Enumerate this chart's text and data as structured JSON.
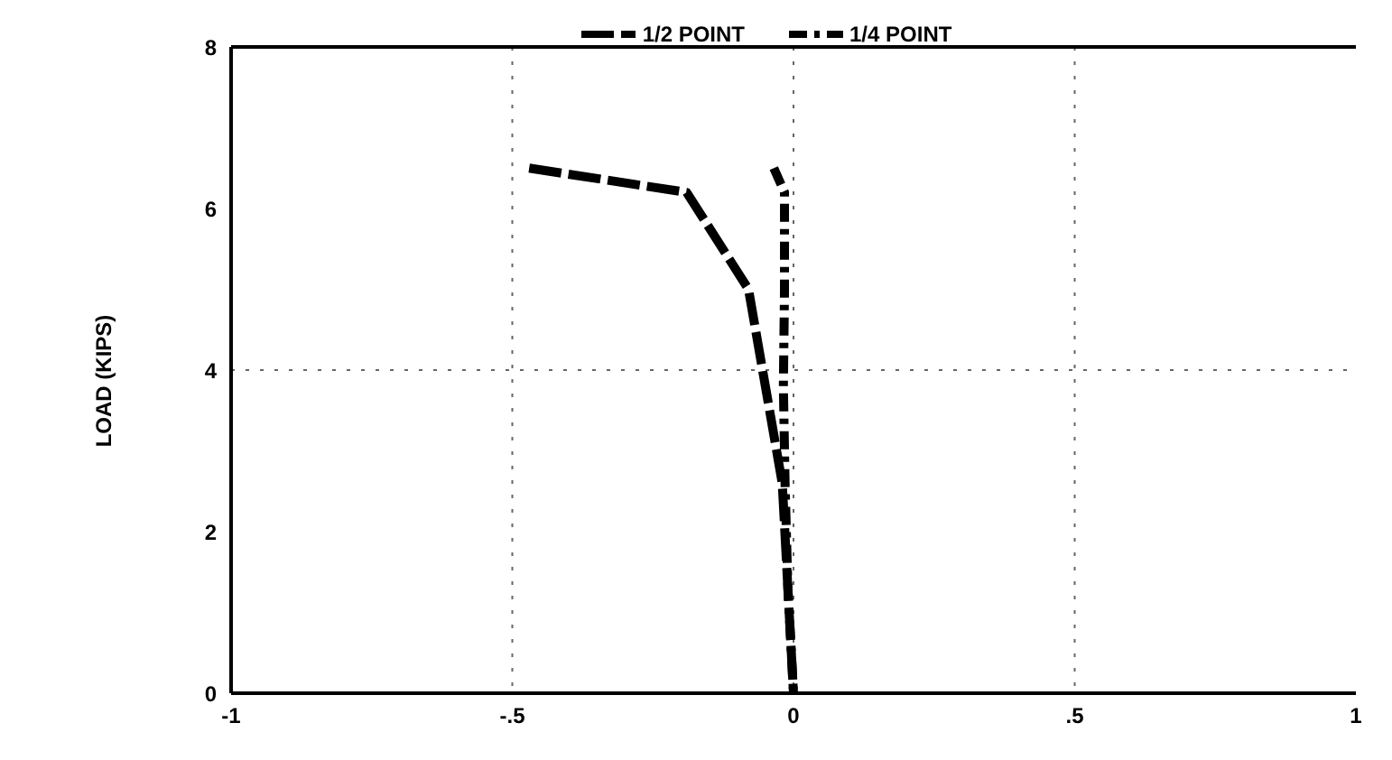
{
  "chart_data": {
    "type": "line",
    "ylabel": "LOAD (KIPS)",
    "series": [
      {
        "name": "1/2 POINT",
        "color": "#000000",
        "line_style": "dashed",
        "x": [
          -0.47,
          -0.19,
          -0.08,
          -0.05,
          -0.02,
          -0.01,
          0
        ],
        "values": [
          6.5,
          6.2,
          5.0,
          3.8,
          2.6,
          1.3,
          0
        ]
      },
      {
        "name": "1/4 POINT",
        "color": "#000000",
        "line_style": "dotted",
        "x": [
          -0.035,
          -0.016,
          -0.016,
          -0.018,
          -0.015,
          -0.01,
          0
        ],
        "values": [
          6.5,
          6.2,
          5.0,
          3.8,
          2.6,
          1.3,
          0
        ]
      }
    ],
    "xlim": [
      -1,
      1
    ],
    "xticks": [
      -1,
      {
        "value": -0.5,
        "label": "-.5"
      },
      0,
      {
        "value": 0.5,
        "label": ".5"
      },
      1
    ],
    "ylim": [
      0,
      8
    ],
    "yticks": [
      0,
      2,
      4,
      6,
      8
    ],
    "ref_lines": [
      {
        "axis": "y",
        "value": 4,
        "line_style": "dotted"
      }
    ],
    "grid": "x",
    "legend": "top",
    "marker": "none"
  }
}
